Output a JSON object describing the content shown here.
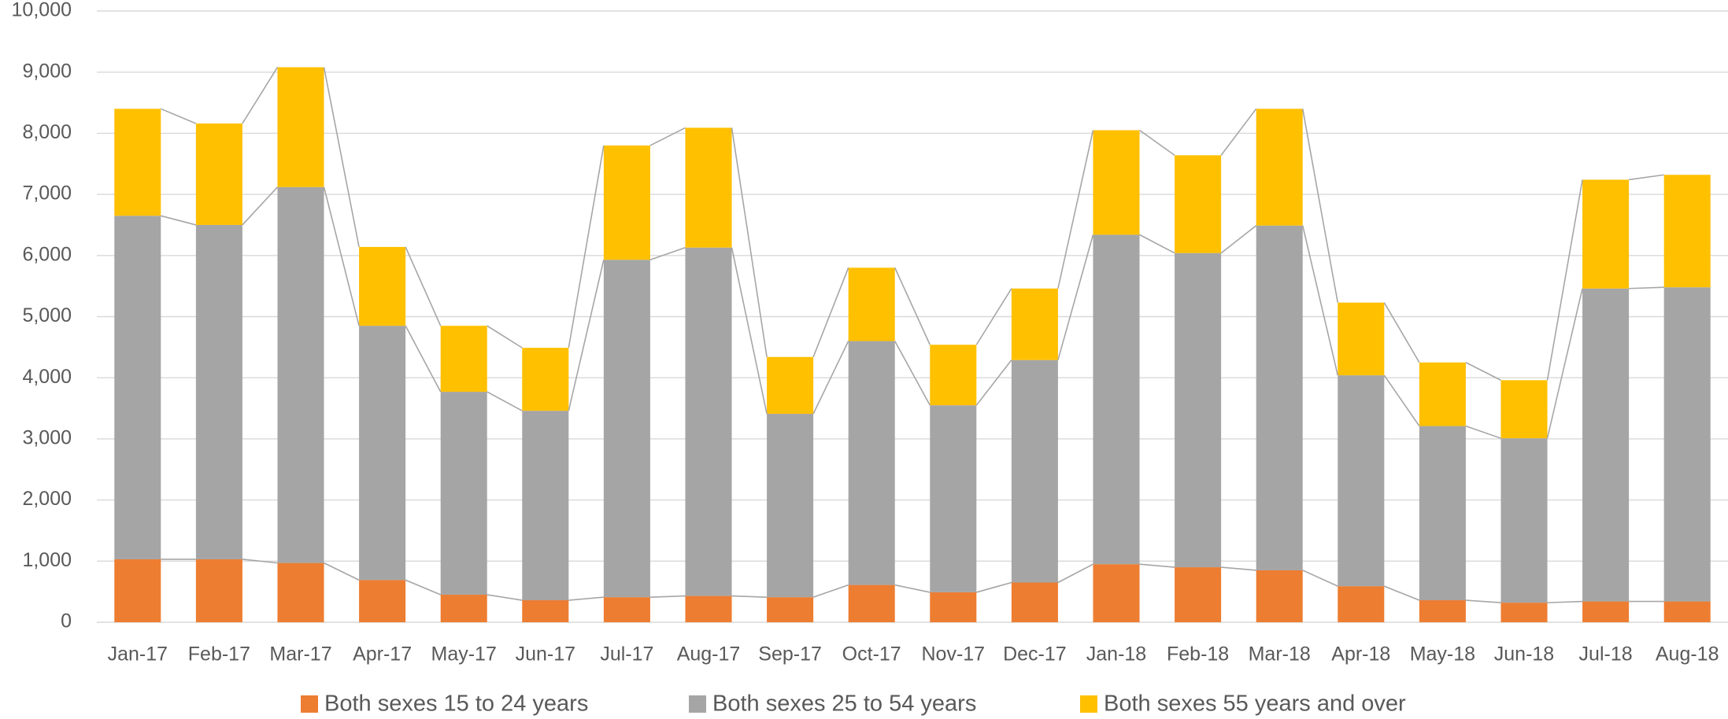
{
  "chart_data": {
    "type": "stacked-bar",
    "categories": [
      "Jan-17",
      "Feb-17",
      "Mar-17",
      "Apr-17",
      "May-17",
      "Jun-17",
      "Jul-17",
      "Aug-17",
      "Sep-17",
      "Oct-17",
      "Nov-17",
      "Dec-17",
      "Jan-18",
      "Feb-18",
      "Mar-18",
      "Apr-18",
      "May-18",
      "Jun-18",
      "Jul-18",
      "Aug-18"
    ],
    "series": [
      {
        "name": "Both sexes 15 to 24 years",
        "color": "#ED7D31",
        "values": [
          1030,
          1030,
          970,
          690,
          450,
          360,
          410,
          430,
          410,
          610,
          490,
          650,
          950,
          900,
          850,
          590,
          360,
          320,
          340,
          340
        ]
      },
      {
        "name": "Both sexes 25 to 54 years",
        "color": "#A5A5A5",
        "values": [
          5620,
          5470,
          6150,
          4160,
          3320,
          3100,
          5520,
          5700,
          3000,
          3990,
          3060,
          3640,
          5390,
          5140,
          5640,
          3450,
          2850,
          2690,
          5120,
          5140
        ]
      },
      {
        "name": "Both sexes 55 years and over",
        "color": "#FFC000",
        "values": [
          1750,
          1660,
          1960,
          1290,
          1080,
          1030,
          1870,
          1960,
          930,
          1200,
          990,
          1170,
          1710,
          1600,
          1910,
          1190,
          1040,
          950,
          1780,
          1840
        ]
      }
    ],
    "ylim": [
      0,
      10000
    ],
    "yticks": [
      0,
      {
        "value": 1000,
        "label": "1,000"
      },
      {
        "value": 2000,
        "label": "2,000"
      },
      {
        "value": 3000,
        "label": "3,000"
      },
      {
        "value": 4000,
        "label": "4,000"
      },
      {
        "value": 5000,
        "label": "5,000"
      },
      {
        "value": 6000,
        "label": "6,000"
      },
      {
        "value": 7000,
        "label": "7,000"
      },
      {
        "value": 8000,
        "label": "8,000"
      },
      {
        "value": 9000,
        "label": "9,000"
      },
      {
        "value": 10000,
        "label": "10,000"
      }
    ],
    "grid": true,
    "series_lines": true,
    "legend": "bottom"
  }
}
